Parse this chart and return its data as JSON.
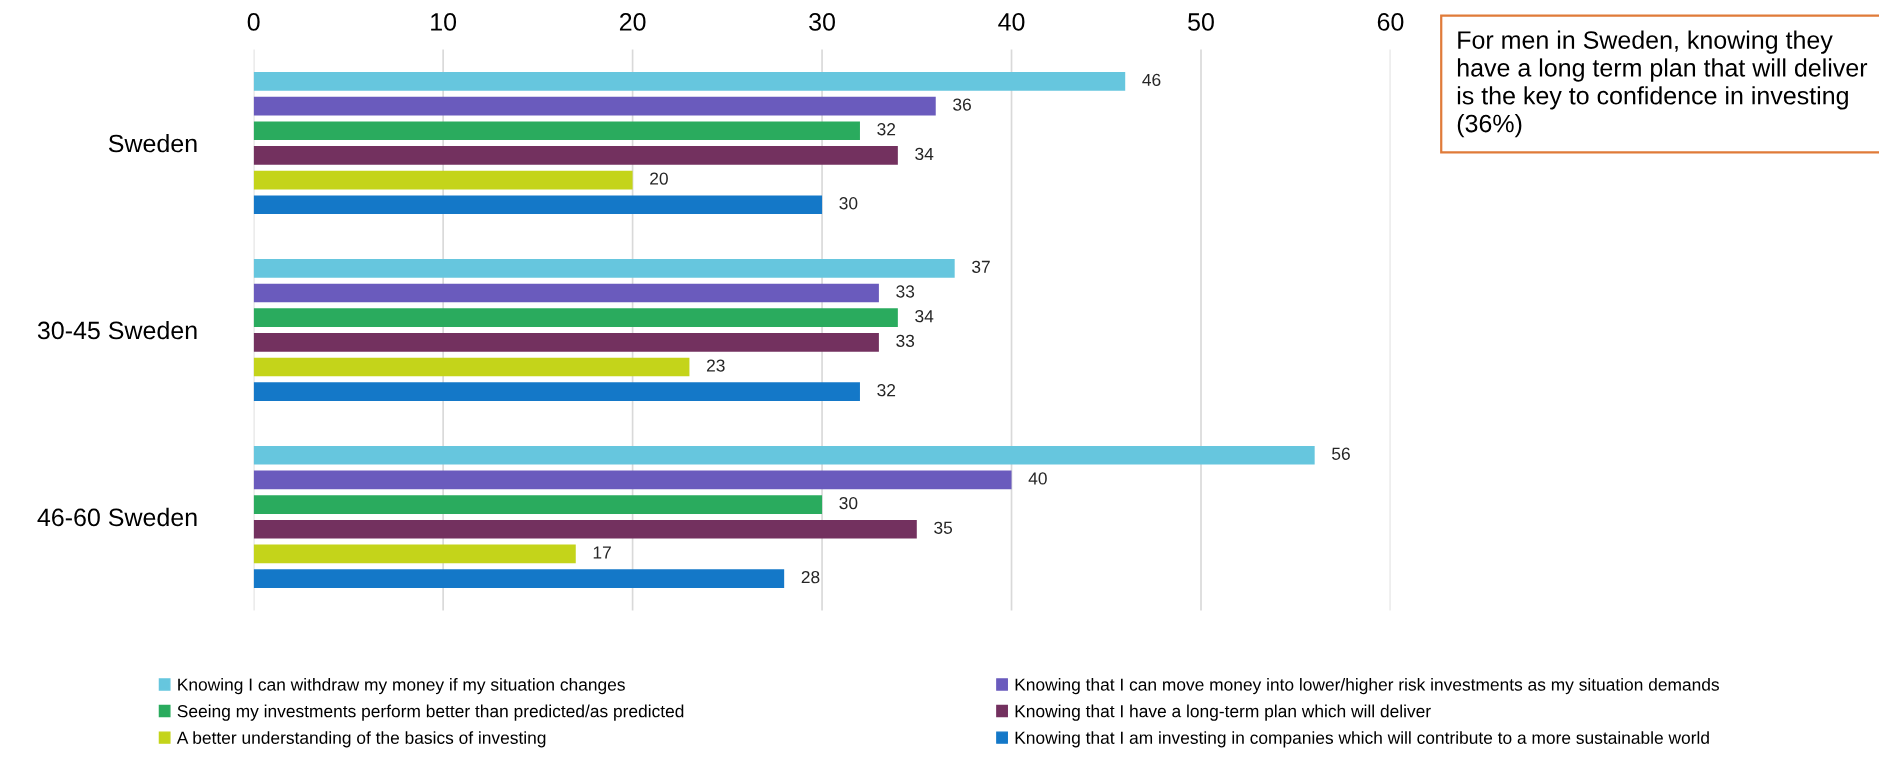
{
  "chart_data": {
    "type": "bar",
    "orientation": "horizontal",
    "categories": [
      "Sweden",
      "30-45 Sweden",
      "46-60 Sweden"
    ],
    "series": [
      {
        "name": "Knowing I can withdraw my money if my situation changes",
        "color": "#66c6de",
        "values": [
          46,
          37,
          56
        ]
      },
      {
        "name": "Knowing that I can move money into lower/higher risk investments as my situation demands",
        "color": "#6a5bbd",
        "values": [
          36,
          33,
          40
        ]
      },
      {
        "name": "Seeing my investments perform better than predicted/as predicted",
        "color": "#2aab5e",
        "values": [
          32,
          34,
          30
        ]
      },
      {
        "name": "Knowing that I have a long-term plan which will deliver",
        "color": "#73315f",
        "values": [
          34,
          33,
          35
        ]
      },
      {
        "name": "A better understanding of the basics of investing",
        "color": "#c4d41a",
        "values": [
          20,
          23,
          17
        ]
      },
      {
        "name": "Knowing that I am investing in companies which will contribute to a more sustainable world",
        "color": "#1478c8",
        "values": [
          30,
          32,
          28
        ]
      }
    ],
    "xlim": [
      0,
      60
    ],
    "xticks": [
      0,
      10,
      20,
      30,
      40,
      50,
      60
    ],
    "grid": "x",
    "legend": "bottom",
    "data_labels": true,
    "annotations": [
      "For men in Sweden, knowing they have a long term plan that will deliver is the key to confidence in investing (36%)"
    ]
  }
}
